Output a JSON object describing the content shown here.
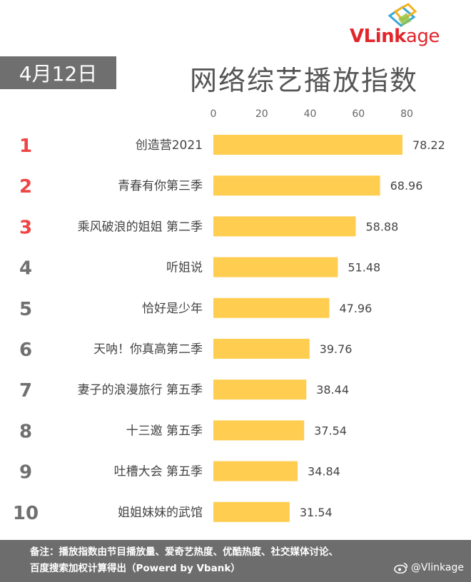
{
  "brand": {
    "name_bold": "VLink",
    "name_thin": "age",
    "color": "#e2262b"
  },
  "date_label": "4月12日",
  "title": "网络综艺播放指数",
  "chart_data": {
    "type": "bar",
    "orientation": "horizontal",
    "title": "网络综艺播放指数",
    "xlim": [
      0,
      80
    ],
    "xticks": [
      0,
      20,
      40,
      60,
      80
    ],
    "axis_position": "top",
    "grid": false,
    "bar_color": "#ffcd4f",
    "rank_colors": {
      "top3": "#ef4545",
      "rest": "#707070"
    },
    "ranks": [
      "1",
      "2",
      "3",
      "4",
      "5",
      "6",
      "7",
      "8",
      "9",
      "10"
    ],
    "categories": [
      "创造营2021",
      "青春有你第三季",
      "乘风破浪的姐姐 第二季",
      "听姐说",
      "恰好是少年",
      "天呐！你真高第二季",
      "妻子的浪漫旅行 第五季",
      "十三邀 第五季",
      "吐槽大会 第五季",
      "姐姐妹妹的武馆"
    ],
    "values": [
      78.22,
      68.96,
      58.88,
      51.48,
      47.96,
      39.76,
      38.44,
      37.54,
      34.84,
      31.54
    ],
    "value_labels": [
      "78.22",
      "68.96",
      "58.88",
      "51.48",
      "47.96",
      "39.76",
      "38.44",
      "37.54",
      "34.84",
      "31.54"
    ]
  },
  "footer": {
    "line1": "备注：播放指数由节目播放量、爱奇艺热度、优酷热度、社交媒体讨论、",
    "line2": "百度搜索加权计算得出（Powerd by Vbank）"
  },
  "watermark": {
    "text": "@Vlinkage",
    "icon": "weibo-icon"
  }
}
